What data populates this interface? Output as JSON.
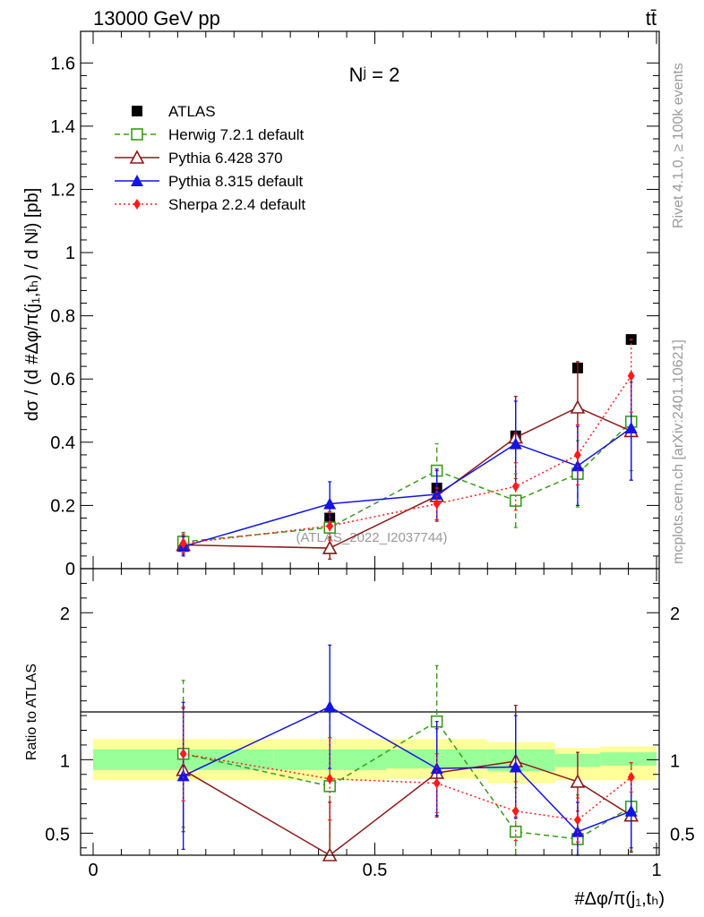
{
  "header": {
    "energy_label": "13000 GeV pp",
    "process_label": "tt̄"
  },
  "side_labels": {
    "rivet": "Rivet 4.1.0, ≥ 100k events",
    "mcplots": "mcplots.cern.ch [arXiv:2401.10621]"
  },
  "colors": {
    "atlas": "#000000",
    "herwig": "#3a9a1a",
    "pythia6": "#8b1a1a",
    "pythia8": "#1414e6",
    "sherpa": "#ff1a1a",
    "band_outer": "#ffff99",
    "band_inner": "#99ff99"
  },
  "chart_data": [
    {
      "type": "scatter",
      "panel": "main",
      "title": "Nʲ = 2",
      "watermark": "(ATLAS_2022_I2037744)",
      "ylabel": "dσ / (d #Δφ/π(j₁,tₕ) / d Nʲ) [pb]",
      "xlim": [
        0,
        1
      ],
      "ylim": [
        0,
        1.7
      ],
      "yticks": [
        0,
        0.2,
        0.4,
        0.6,
        0.8,
        1,
        1.2,
        1.4,
        1.6
      ],
      "ytick_labels": [
        "0",
        "0.2",
        "0.4",
        "0.6",
        "0.8",
        "1",
        "1.2",
        "1.4",
        "1.6"
      ],
      "legend_position": "top-left",
      "bins": [
        [
          0,
          0.32
        ],
        [
          0.32,
          0.52
        ],
        [
          0.52,
          0.7
        ],
        [
          0.7,
          0.82
        ],
        [
          0.82,
          0.9
        ],
        [
          0.9,
          1.0
        ]
      ],
      "x": [
        0.16,
        0.42,
        0.61,
        0.75,
        0.86,
        0.955
      ],
      "series": [
        {
          "key": "atlas",
          "name": "ATLAS",
          "marker": "square-filled",
          "line": "none",
          "values": [
            0.08,
            0.16,
            0.255,
            0.42,
            0.635,
            0.725
          ],
          "errors": [
            0,
            0,
            0,
            0,
            0,
            0
          ]
        },
        {
          "key": "herwig",
          "name": "Herwig 7.2.1 default",
          "marker": "square-open",
          "line": "dashed",
          "values": [
            0.085,
            0.13,
            0.31,
            0.215,
            0.3,
            0.465
          ],
          "errors": [
            0.03,
            0.05,
            0.085,
            0.085,
            0.105,
            0.155
          ]
        },
        {
          "key": "pythia6",
          "name": "Pythia 6.428 370",
          "marker": "triangle-open",
          "line": "solid",
          "values": [
            0.075,
            0.065,
            0.23,
            0.415,
            0.51,
            0.435
          ],
          "errors": [
            0.03,
            0.035,
            0.08,
            0.13,
            0.145,
            0.155
          ]
        },
        {
          "key": "pythia8",
          "name": "Pythia 8.315 default",
          "marker": "triangle-filled",
          "line": "solid",
          "values": [
            0.07,
            0.205,
            0.235,
            0.395,
            0.325,
            0.445
          ],
          "errors": [
            0.03,
            0.07,
            0.08,
            0.135,
            0.125,
            0.165
          ]
        },
        {
          "key": "sherpa",
          "name": "Sherpa 2.2.4 default",
          "marker": "diamond-filled",
          "line": "dotted",
          "values": [
            0.08,
            0.135,
            0.205,
            0.26,
            0.36,
            0.61
          ],
          "errors": [
            0.03,
            0.045,
            0.05,
            0.075,
            0.095,
            0.115
          ]
        }
      ]
    },
    {
      "type": "scatter",
      "panel": "ratio",
      "ylabel": "Ratio to ATLAS",
      "xlabel": "#Δφ/π(j₁,tₕ)",
      "xlim": [
        0,
        1
      ],
      "ylim": [
        0.35,
        2.3
      ],
      "yticks": [
        0.5,
        1,
        2
      ],
      "ytick_labels": [
        "0.5",
        "1",
        "2"
      ],
      "xticks": [
        0,
        0.5,
        1
      ],
      "xtick_labels": [
        "0",
        "0.5",
        "1"
      ],
      "bins": [
        [
          0,
          0.32
        ],
        [
          0.32,
          0.52
        ],
        [
          0.52,
          0.7
        ],
        [
          0.7,
          0.82
        ],
        [
          0.82,
          0.9
        ],
        [
          0.9,
          1.0
        ]
      ],
      "band_outer": [
        [
          0.86,
          1.14
        ],
        [
          0.86,
          1.14
        ],
        [
          0.87,
          1.14
        ],
        [
          0.84,
          1.12
        ],
        [
          0.86,
          1.08
        ],
        [
          0.86,
          1.09
        ]
      ],
      "band_inner": [
        [
          0.93,
          1.07
        ],
        [
          0.93,
          1.07
        ],
        [
          0.94,
          1.07
        ],
        [
          0.92,
          1.07
        ],
        [
          0.95,
          1.04
        ],
        [
          0.96,
          1.05
        ]
      ],
      "x": [
        0.16,
        0.42,
        0.61,
        0.75,
        0.86,
        0.955
      ],
      "series": [
        {
          "key": "herwig",
          "values": [
            1.04,
            0.82,
            1.26,
            0.51,
            0.46,
            0.68
          ],
          "errors": [
            0.5,
            0.5,
            0.38,
            0.3,
            0.3,
            0.3
          ]
        },
        {
          "key": "pythia6",
          "values": [
            0.93,
            0.33,
            0.91,
            0.99,
            0.85,
            0.62
          ],
          "errors": [
            0.42,
            0.38,
            0.3,
            0.38,
            0.2,
            0.25
          ]
        },
        {
          "key": "pythia8",
          "values": [
            0.89,
            1.36,
            0.94,
            0.95,
            0.51,
            0.65
          ],
          "errors": [
            0.5,
            0.42,
            0.32,
            0.35,
            0.2,
            0.25
          ]
        },
        {
          "key": "sherpa",
          "values": [
            1.04,
            0.87,
            0.84,
            0.65,
            0.59,
            0.88
          ],
          "errors": [
            0.32,
            0.28,
            0.2,
            0.2,
            0.15,
            0.1
          ]
        }
      ]
    }
  ]
}
